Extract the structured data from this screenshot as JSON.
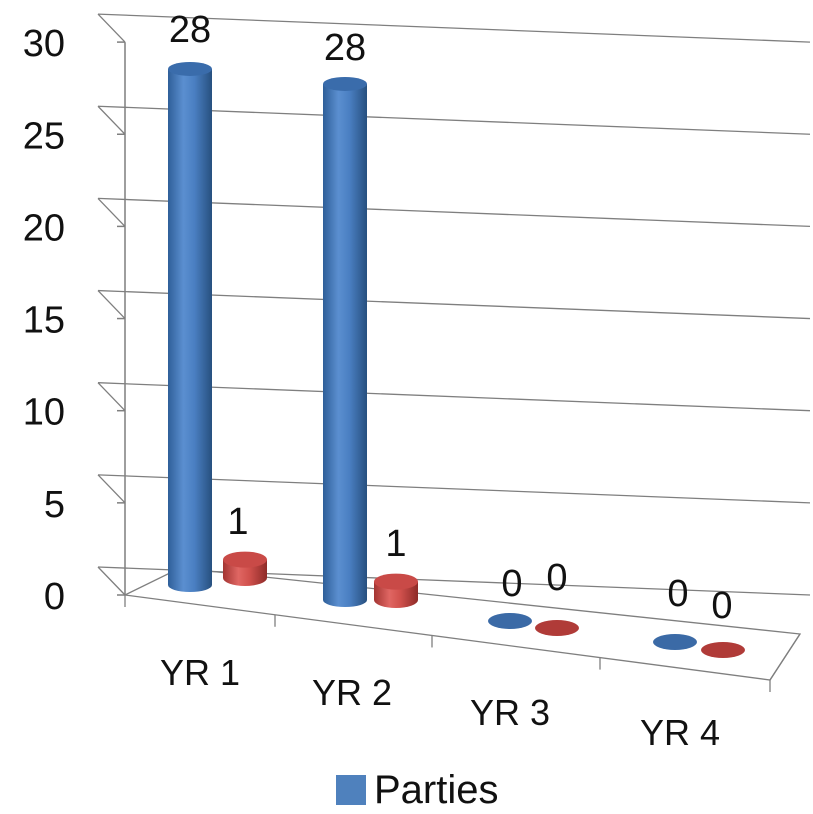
{
  "chart_data": {
    "type": "bar",
    "style": "3d-cylinder",
    "categories": [
      "YR 1",
      "YR 2",
      "YR 3",
      "YR 4"
    ],
    "series": [
      {
        "name": "Parties",
        "values": [
          28,
          28,
          0,
          0
        ],
        "color": "#4f81bd"
      },
      {
        "values": [
          1,
          1,
          0,
          0
        ],
        "color": "#c0504d"
      }
    ],
    "yticks": [
      "0",
      "5",
      "10",
      "15",
      "20",
      "25",
      "30"
    ],
    "ylim": [
      0,
      30
    ],
    "grid": true,
    "legend_position": "bottom",
    "legend": [
      "Parties"
    ]
  }
}
